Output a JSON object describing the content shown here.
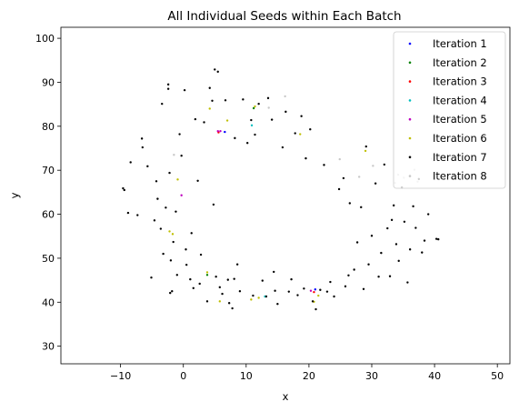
{
  "chart_data": {
    "type": "scatter",
    "title": "All Individual Seeds within Each Batch",
    "xlabel": "x",
    "ylabel": "y",
    "xlim": [
      -19.5,
      52
    ],
    "ylim": [
      26,
      102.5
    ],
    "xticks": [
      -10,
      0,
      10,
      20,
      30,
      40,
      50
    ],
    "yticks": [
      30,
      40,
      50,
      60,
      70,
      80,
      90,
      100
    ],
    "grid": false,
    "legend_position": "top-right",
    "series": [
      {
        "name": "Iteration 1",
        "color": "#0000ff",
        "points": [
          [
            6.6,
            78.7
          ],
          [
            21.0,
            42.9
          ]
        ]
      },
      {
        "name": "Iteration 2",
        "color": "#008000",
        "points": [
          [
            11.2,
            84.1
          ],
          [
            3.8,
            46.2
          ]
        ]
      },
      {
        "name": "Iteration 3",
        "color": "#ff0000",
        "points": [
          [
            5.6,
            78.6
          ],
          [
            20.8,
            42.3
          ]
        ]
      },
      {
        "name": "Iteration 4",
        "color": "#00bfbf",
        "points": [
          [
            10.9,
            80.2
          ],
          [
            13.0,
            41.3
          ]
        ]
      },
      {
        "name": "Iteration 5",
        "color": "#bf00bf",
        "points": [
          [
            5.5,
            78.9
          ],
          [
            5.9,
            78.9
          ],
          [
            -0.3,
            64.3
          ],
          [
            20.3,
            42.6
          ]
        ]
      },
      {
        "name": "Iteration 6",
        "color": "#bfbf00",
        "points": [
          [
            4.2,
            84.0
          ],
          [
            11.4,
            84.5
          ],
          [
            7.0,
            81.3
          ],
          [
            -0.9,
            67.9
          ],
          [
            -2.2,
            56.1
          ],
          [
            -1.7,
            55.5
          ],
          [
            3.8,
            46.8
          ],
          [
            5.8,
            40.2
          ],
          [
            10.8,
            40.6
          ],
          [
            20.8,
            40.1
          ],
          [
            21.5,
            41.5
          ],
          [
            12.0,
            41.0
          ],
          [
            18.6,
            78.2
          ],
          [
            29.0,
            74.4
          ]
        ]
      },
      {
        "name": "Iteration 7",
        "color": "#000000",
        "points": [
          [
            -9.6,
            65.9
          ],
          [
            -9.4,
            65.5
          ],
          [
            -8.4,
            71.8
          ],
          [
            -8.8,
            60.3
          ],
          [
            -7.3,
            59.8
          ],
          [
            -6.6,
            77.2
          ],
          [
            -6.5,
            75.2
          ],
          [
            -5.7,
            70.9
          ],
          [
            -5.1,
            45.6
          ],
          [
            -4.3,
            67.5
          ],
          [
            -4.1,
            63.5
          ],
          [
            -4.6,
            58.6
          ],
          [
            -3.4,
            85.1
          ],
          [
            -3.2,
            51.0
          ],
          [
            -2.8,
            61.5
          ],
          [
            -2.4,
            88.5
          ],
          [
            -2.4,
            89.5
          ],
          [
            -2.2,
            69.4
          ],
          [
            -2.1,
            42.1
          ],
          [
            -1.8,
            42.5
          ],
          [
            -1.6,
            53.7
          ],
          [
            -1.2,
            60.6
          ],
          [
            -1.0,
            46.2
          ],
          [
            -0.6,
            78.2
          ],
          [
            -0.3,
            73.3
          ],
          [
            0.2,
            88.2
          ],
          [
            0.4,
            52.0
          ],
          [
            0.5,
            48.5
          ],
          [
            1.1,
            45.2
          ],
          [
            1.6,
            43.2
          ],
          [
            1.9,
            81.6
          ],
          [
            2.3,
            67.6
          ],
          [
            2.6,
            44.2
          ],
          [
            3.3,
            80.9
          ],
          [
            3.8,
            40.2
          ],
          [
            4.2,
            88.7
          ],
          [
            4.6,
            85.8
          ],
          [
            5.0,
            92.9
          ],
          [
            5.5,
            92.4
          ],
          [
            4.8,
            62.2
          ],
          [
            5.2,
            45.8
          ],
          [
            5.8,
            43.4
          ],
          [
            6.2,
            41.9
          ],
          [
            6.7,
            85.9
          ],
          [
            7.1,
            45.1
          ],
          [
            7.3,
            39.8
          ],
          [
            7.8,
            38.6
          ],
          [
            8.2,
            77.3
          ],
          [
            8.6,
            48.6
          ],
          [
            9.0,
            42.5
          ],
          [
            9.5,
            86.1
          ],
          [
            10.2,
            76.2
          ],
          [
            10.8,
            81.4
          ],
          [
            11.4,
            78.1
          ],
          [
            11.1,
            41.5
          ],
          [
            12.0,
            85.1
          ],
          [
            12.6,
            44.9
          ],
          [
            13.2,
            41.3
          ],
          [
            13.5,
            86.4
          ],
          [
            14.1,
            81.5
          ],
          [
            14.4,
            46.9
          ],
          [
            15.0,
            39.6
          ],
          [
            15.8,
            75.2
          ],
          [
            16.3,
            83.3
          ],
          [
            16.8,
            42.4
          ],
          [
            17.2,
            45.2
          ],
          [
            17.8,
            78.4
          ],
          [
            18.2,
            41.6
          ],
          [
            18.8,
            82.3
          ],
          [
            19.2,
            43.1
          ],
          [
            19.5,
            72.7
          ],
          [
            20.2,
            79.3
          ],
          [
            20.6,
            40.2
          ],
          [
            21.1,
            38.4
          ],
          [
            21.8,
            42.8
          ],
          [
            22.4,
            71.2
          ],
          [
            22.9,
            42.4
          ],
          [
            23.4,
            44.6
          ],
          [
            24.0,
            41.3
          ],
          [
            24.8,
            65.7
          ],
          [
            25.5,
            68.2
          ],
          [
            25.8,
            43.6
          ],
          [
            26.5,
            62.5
          ],
          [
            27.2,
            47.4
          ],
          [
            27.7,
            53.6
          ],
          [
            28.3,
            61.6
          ],
          [
            28.7,
            43.0
          ],
          [
            29.1,
            75.4
          ],
          [
            29.5,
            48.6
          ],
          [
            30.0,
            55.1
          ],
          [
            30.6,
            67.0
          ],
          [
            31.1,
            45.8
          ],
          [
            31.5,
            51.2
          ],
          [
            32.0,
            71.3
          ],
          [
            32.5,
            56.8
          ],
          [
            32.9,
            45.9
          ],
          [
            33.5,
            62.0
          ],
          [
            33.9,
            53.2
          ],
          [
            34.3,
            49.4
          ],
          [
            34.8,
            66.1
          ],
          [
            35.2,
            58.3
          ],
          [
            35.7,
            44.5
          ],
          [
            36.1,
            52.0
          ],
          [
            36.6,
            61.8
          ],
          [
            37.0,
            56.9
          ],
          [
            37.5,
            68.0
          ],
          [
            38.0,
            51.3
          ],
          [
            38.4,
            54.0
          ],
          [
            39.0,
            60.0
          ],
          [
            40.3,
            54.4
          ],
          [
            40.6,
            54.3
          ],
          [
            -3.6,
            56.7
          ],
          [
            -2.0,
            49.5
          ],
          [
            1.3,
            55.7
          ],
          [
            2.8,
            50.8
          ],
          [
            8.1,
            45.3
          ],
          [
            14.6,
            42.6
          ],
          [
            26.3,
            46.1
          ],
          [
            33.2,
            58.7
          ]
        ]
      },
      {
        "name": "Iteration 8",
        "color": "#c8c8c8",
        "points": [
          [
            34.2,
            69.0
          ],
          [
            35.1,
            68.3
          ],
          [
            37.3,
            67.4
          ],
          [
            39.6,
            72.6
          ],
          [
            39.8,
            72.2
          ],
          [
            36.8,
            70.1
          ],
          [
            33.7,
            67.1
          ],
          [
            16.2,
            86.8
          ],
          [
            13.6,
            84.2
          ],
          [
            -1.5,
            73.5
          ],
          [
            30.2,
            71.0
          ],
          [
            24.9,
            72.5
          ],
          [
            28.0,
            68.5
          ]
        ]
      }
    ]
  }
}
